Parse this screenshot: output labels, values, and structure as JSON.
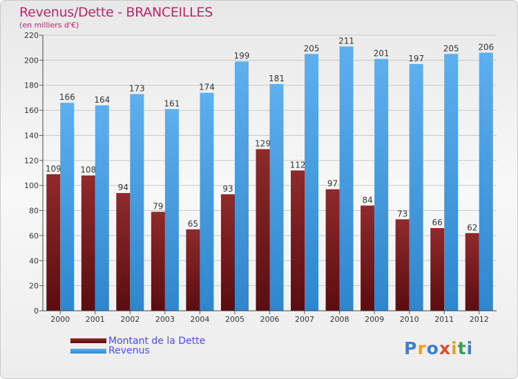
{
  "title": "Revenus/Dette - BRANCEILLES",
  "subtitle": "(en milliers d'€)",
  "chart_data": {
    "type": "bar",
    "title": "Revenus/Dette - BRANCEILLES",
    "ylabel": "(en milliers d'€)",
    "xlabel": "",
    "ylim": [
      0,
      220
    ],
    "yticks": [
      "0",
      "20",
      "40",
      "60",
      "80",
      "100",
      "120",
      "140",
      "160",
      "180",
      "200",
      "220"
    ],
    "grid": true,
    "categories": [
      "2000",
      "2001",
      "2002",
      "2003",
      "2004",
      "2005",
      "2006",
      "2007",
      "2008",
      "2009",
      "2010",
      "2011",
      "2012"
    ],
    "series": [
      {
        "name": "Montant de la Dette",
        "color": "#7a1f22",
        "values": [
          109,
          108,
          94,
          79,
          65,
          93,
          129,
          112,
          97,
          84,
          73,
          66,
          62
        ]
      },
      {
        "name": "Revenus",
        "color": "#4fa3e4",
        "values": [
          166,
          164,
          173,
          161,
          174,
          199,
          181,
          205,
          211,
          201,
          197,
          205,
          206
        ]
      }
    ],
    "legend": "bottom-left"
  },
  "legend": {
    "debt_label": "Montant de la Dette",
    "revenue_label": "Revenus"
  },
  "logo": {
    "letters": [
      "P",
      "r",
      "o",
      "x",
      "i",
      "t",
      "i"
    ],
    "colors": [
      "#3a7fd0",
      "#f0a020",
      "#3a7fd0",
      "#e04a2a",
      "#f0a020",
      "#3aa050",
      "#3a7fd0"
    ]
  }
}
